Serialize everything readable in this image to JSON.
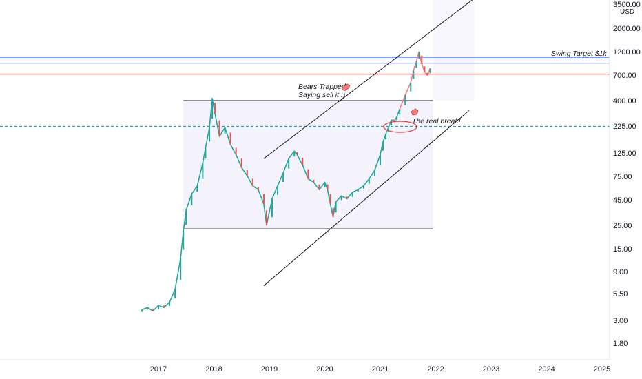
{
  "chart_data": {
    "type": "line",
    "yscale": "log",
    "ylabel": "",
    "xlabel": "",
    "title": "",
    "currency": "USD",
    "y_ticks": [
      "3500.00",
      "2000.00",
      "1200.00",
      "700.00",
      "400.00",
      "225.00",
      "125.00",
      "75.00",
      "45.00",
      "25.00",
      "15.00",
      "9.00",
      "5.50",
      "3.00",
      "1.80"
    ],
    "x_ticks": [
      "2017",
      "2018",
      "2019",
      "2020",
      "2021",
      "2022",
      "2023",
      "2024",
      "2025"
    ],
    "series": [
      {
        "color": "#26a69a",
        "x": [
          2016.7,
          2016.8,
          2016.9,
          2017.0,
          2017.1,
          2017.2,
          2017.3,
          2017.4,
          2017.45,
          2017.5,
          2017.6,
          2017.7,
          2017.8,
          2017.85,
          2017.92,
          2017.97,
          2018.02,
          2018.1,
          2018.2,
          2018.3,
          2018.4,
          2018.5,
          2018.6,
          2018.7,
          2018.8,
          2018.9,
          2018.95,
          2019.05,
          2019.15,
          2019.25,
          2019.35,
          2019.45,
          2019.5,
          2019.6,
          2019.7,
          2019.8,
          2019.9,
          2020.0,
          2020.05,
          2020.1,
          2020.15,
          2020.2,
          2020.3,
          2020.4,
          2020.5,
          2020.6,
          2020.7,
          2020.8,
          2020.9,
          2021.0,
          2021.05,
          2021.1,
          2021.15,
          2021.2,
          2021.25,
          2021.3,
          2021.35
        ],
        "y": [
          3.8,
          4.0,
          3.7,
          4.2,
          4.0,
          4.5,
          6.0,
          12.0,
          22.0,
          35.0,
          50.0,
          60.0,
          100.0,
          140.0,
          220.0,
          420.0,
          300.0,
          180.0,
          220.0,
          150.0,
          120.0,
          90.0,
          75.0,
          60.0,
          55.0,
          40.0,
          25.0,
          45.0,
          60.0,
          80.0,
          110.0,
          130.0,
          120.0,
          95.0,
          70.0,
          65.0,
          55.0,
          65.0,
          55.0,
          40.0,
          30.0,
          42.0,
          48.0,
          45.0,
          52.0,
          55.0,
          60.0,
          70.0,
          85.0,
          120.0,
          160.0,
          190.0,
          220.0,
          260.0,
          250.0,
          280.0,
          330.0
        ]
      },
      {
        "color": "#f77c80",
        "x": [
          2021.35,
          2021.45,
          2021.55,
          2021.6,
          2021.65,
          2021.7,
          2021.75,
          2021.8,
          2021.85,
          2021.9
        ],
        "y": [
          330.0,
          450.0,
          600.0,
          780.0,
          950.0,
          1180.0,
          900.0,
          760.0,
          700.0,
          820.0
        ]
      }
    ],
    "levels": [
      {
        "value": 1050,
        "color": "#2962ff"
      },
      {
        "value": 920,
        "color": "#7b8fd6"
      },
      {
        "value": 720,
        "color": "#e53935"
      },
      {
        "value": 225,
        "color": "#2a9db8",
        "dashed": true
      }
    ],
    "annotations": {
      "swing_target": "Swing Target $1k",
      "bears_trapped_line1": "Bears Trapped",
      "bears_trapped_line2": "Saying sell it :)",
      "real_break": "The real break!"
    },
    "range_box": {
      "x_start": 2017.45,
      "x_end": 2021.95,
      "y_top": 400,
      "y_bottom": 23
    },
    "channel": {
      "upper": {
        "x1": 2018.9,
        "y1": 110,
        "x2": 2022.7,
        "y2": 3900
      },
      "lower": {
        "x1": 2018.9,
        "y1": 6.5,
        "x2": 2022.6,
        "y2": 320
      }
    },
    "grid": false,
    "legend": "none"
  }
}
